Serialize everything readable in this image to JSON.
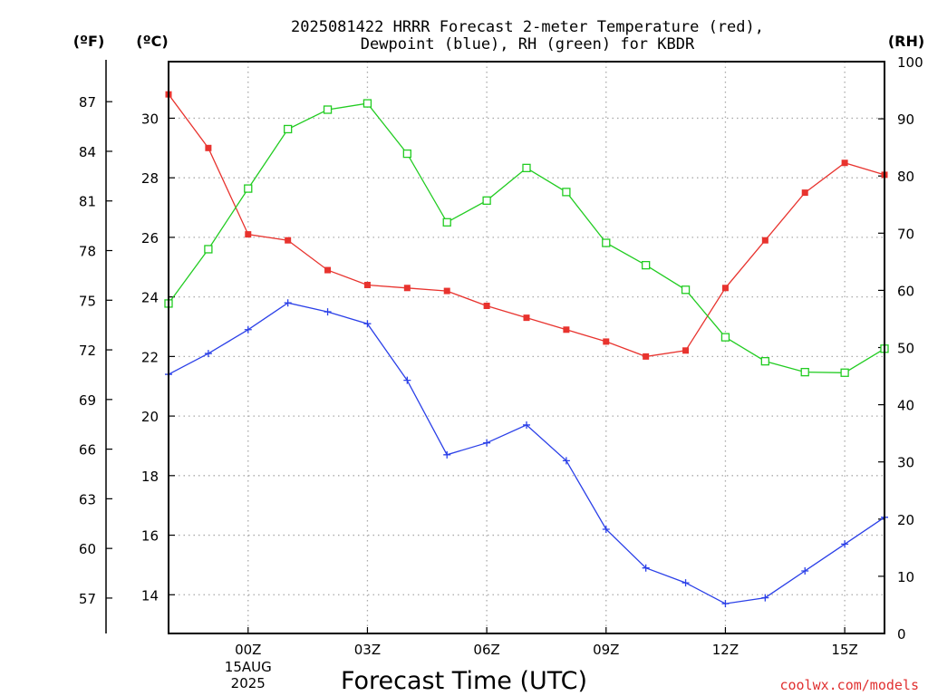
{
  "chart_data": {
    "type": "line",
    "title_lines": [
      "2025081422 HRRR Forecast 2-meter Temperature (red),",
      "Dewpoint (blue), RH (green) for KBDR"
    ],
    "units": {
      "fahrenheit": "(ºF)",
      "celsius": "(ºC)",
      "rh": "(RH)"
    },
    "xlabel": "Forecast Time (UTC)",
    "credit": "coolwx.com/models",
    "x_hours": [
      -2,
      -1,
      0,
      1,
      2,
      3,
      4,
      5,
      6,
      7,
      8,
      9,
      10,
      11,
      12,
      13,
      14,
      15,
      16
    ],
    "xlim": [
      -2,
      16
    ],
    "x_ticks": [
      {
        "hour": 0,
        "label": "00Z",
        "sub": [
          "15AUG",
          "2025"
        ]
      },
      {
        "hour": 3,
        "label": "03Z"
      },
      {
        "hour": 6,
        "label": "06Z"
      },
      {
        "hour": 9,
        "label": "09Z"
      },
      {
        "hour": 12,
        "label": "12Z"
      },
      {
        "hour": 15,
        "label": "15Z"
      }
    ],
    "celsius_axis": {
      "ylim": [
        12.7,
        31.9
      ],
      "ticks": [
        14,
        16,
        18,
        20,
        22,
        24,
        26,
        28,
        30
      ]
    },
    "fahrenheit_axis": {
      "ticks": [
        57,
        60,
        63,
        66,
        69,
        72,
        75,
        78,
        81,
        84,
        87
      ]
    },
    "rh_axis": {
      "ylim": [
        0,
        100
      ],
      "ticks": [
        0,
        10,
        20,
        30,
        40,
        50,
        60,
        70,
        80,
        90,
        100
      ]
    },
    "grid": true,
    "series": [
      {
        "name": "Temperature (red)",
        "axis": "celsius",
        "color": "#e8332e",
        "marker": "filled-square",
        "values": [
          30.8,
          29.0,
          26.1,
          25.9,
          24.9,
          24.4,
          24.3,
          24.2,
          23.7,
          23.3,
          22.9,
          22.5,
          22.0,
          22.2,
          24.3,
          25.9,
          27.5,
          28.5,
          28.1
        ]
      },
      {
        "name": "Dewpoint (blue)",
        "axis": "celsius",
        "color": "#2b40e8",
        "marker": "plus",
        "values": [
          21.4,
          22.1,
          22.9,
          23.8,
          23.5,
          23.1,
          21.2,
          18.7,
          19.1,
          19.7,
          18.5,
          16.2,
          14.9,
          14.4,
          13.7,
          13.9,
          14.8,
          15.7,
          16.6
        ]
      },
      {
        "name": "RH (green)",
        "axis": "rh",
        "color": "#22cc22",
        "marker": "open-square",
        "values": [
          57.7,
          67.2,
          77.8,
          88.2,
          91.6,
          92.7,
          83.9,
          71.9,
          75.7,
          81.4,
          77.2,
          68.3,
          64.4,
          60.1,
          51.8,
          47.6,
          45.7,
          45.6,
          49.8
        ]
      }
    ]
  }
}
